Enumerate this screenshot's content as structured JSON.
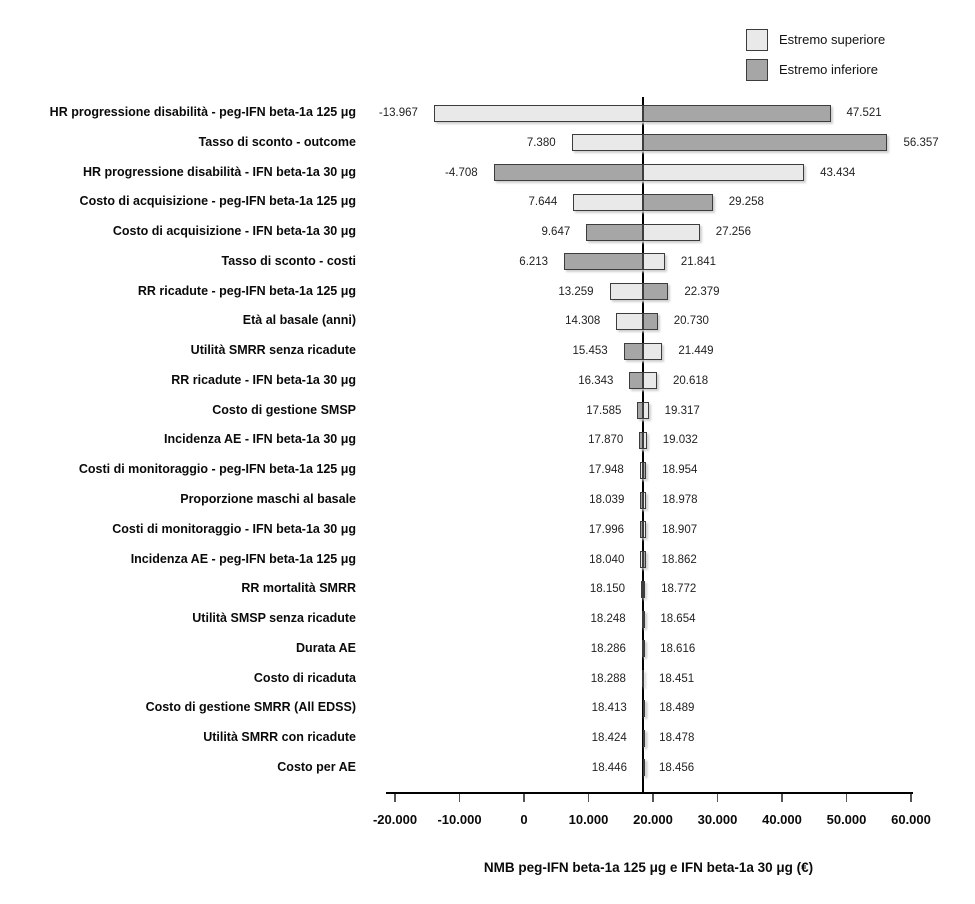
{
  "colors": {
    "estremo_superiore": "#e9e9e9",
    "estremo_inferiore": "#a6a6a6",
    "bar_border": "#3c3c3c",
    "axis": "#000000"
  },
  "legend": {
    "items": [
      {
        "label": "Estremo superiore",
        "key": "estremo_superiore"
      },
      {
        "label": "Estremo inferiore",
        "key": "estremo_inferiore"
      }
    ]
  },
  "chart_data": {
    "type": "bar",
    "subtype": "tornado",
    "xlabel": "NMB peg-IFN beta-1a 125 μg e IFN beta-1a 30 μg (€)",
    "baseline_value": 18451,
    "xlim": [
      -20000,
      60000
    ],
    "grid": false,
    "legend_position": "top-right",
    "x_ticks": [
      {
        "v": -20000,
        "label": "-20.000"
      },
      {
        "v": -10000,
        "label": "-10.000"
      },
      {
        "v": 0,
        "label": "0"
      },
      {
        "v": 10000,
        "label": "10.000"
      },
      {
        "v": 20000,
        "label": "20.000"
      },
      {
        "v": 30000,
        "label": "30.000"
      },
      {
        "v": 40000,
        "label": "40.000"
      },
      {
        "v": 50000,
        "label": "50.000"
      },
      {
        "v": 60000,
        "label": "60.000"
      }
    ],
    "rows": [
      {
        "label": "HR progressione disabilità - peg-IFN beta-1a 125 μg",
        "low": -13967,
        "high": 47521,
        "low_label": "-13.967",
        "high_label": "47.521",
        "left": "estremo_superiore"
      },
      {
        "label": "Tasso di sconto - outcome",
        "low": 7380,
        "high": 56357,
        "low_label": "7.380",
        "high_label": "56.357",
        "left": "estremo_superiore"
      },
      {
        "label": "HR progressione disabilità - IFN beta-1a 30 μg",
        "low": -4708,
        "high": 43434,
        "low_label": "-4.708",
        "high_label": "43.434",
        "left": "estremo_inferiore"
      },
      {
        "label": "Costo di acquisizione - peg-IFN beta-1a 125 μg",
        "low": 7644,
        "high": 29258,
        "low_label": "7.644",
        "high_label": "29.258",
        "left": "estremo_superiore"
      },
      {
        "label": "Costo di acquisizione - IFN beta-1a 30 μg",
        "low": 9647,
        "high": 27256,
        "low_label": "9.647",
        "high_label": "27.256",
        "left": "estremo_inferiore"
      },
      {
        "label": "Tasso di sconto - costi",
        "low": 6213,
        "high": 21841,
        "low_label": "6.213",
        "high_label": "21.841",
        "left": "estremo_inferiore"
      },
      {
        "label": "RR ricadute - peg-IFN beta-1a 125 μg",
        "low": 13259,
        "high": 22379,
        "low_label": "13.259",
        "high_label": "22.379",
        "left": "estremo_superiore"
      },
      {
        "label": "Età al basale (anni)",
        "low": 14308,
        "high": 20730,
        "low_label": "14.308",
        "high_label": "20.730",
        "left": "estremo_superiore"
      },
      {
        "label": "Utilità SMRR senza ricadute",
        "low": 15453,
        "high": 21449,
        "low_label": "15.453",
        "high_label": "21.449",
        "left": "estremo_inferiore"
      },
      {
        "label": "RR ricadute - IFN beta-1a 30 μg",
        "low": 16343,
        "high": 20618,
        "low_label": "16.343",
        "high_label": "20.618",
        "left": "estremo_inferiore"
      },
      {
        "label": "Costo di gestione SMSP",
        "low": 17585,
        "high": 19317,
        "low_label": "17.585",
        "high_label": "19.317",
        "left": "estremo_inferiore"
      },
      {
        "label": "Incidenza AE - IFN beta-1a 30 μg",
        "low": 17870,
        "high": 19032,
        "low_label": "17.870",
        "high_label": "19.032",
        "left": "estremo_inferiore"
      },
      {
        "label": "Costi di monitoraggio - peg-IFN beta-1a 125 μg",
        "low": 17948,
        "high": 18954,
        "low_label": "17.948",
        "high_label": "18.954",
        "left": "estremo_superiore"
      },
      {
        "label": "Proporzione maschi al basale",
        "low": 18039,
        "high": 18978,
        "low_label": "18.039",
        "high_label": "18.978",
        "left": "estremo_inferiore"
      },
      {
        "label": "Costi di monitoraggio - IFN beta-1a 30 μg",
        "low": 17996,
        "high": 18907,
        "low_label": "17.996",
        "high_label": "18.907",
        "left": "estremo_inferiore"
      },
      {
        "label": "Incidenza AE - peg-IFN beta-1a 125 μg",
        "low": 18040,
        "high": 18862,
        "low_label": "18.040",
        "high_label": "18.862",
        "left": "estremo_superiore"
      },
      {
        "label": "RR mortalità SMRR",
        "low": 18150,
        "high": 18772,
        "low_label": "18.150",
        "high_label": "18.772",
        "left": "estremo_inferiore"
      },
      {
        "label": "Utilità SMSP senza ricadute",
        "low": 18248,
        "high": 18654,
        "low_label": "18.248",
        "high_label": "18.654",
        "left": "estremo_inferiore"
      },
      {
        "label": "Durata AE",
        "low": 18286,
        "high": 18616,
        "low_label": "18.286",
        "high_label": "18.616",
        "left": "estremo_superiore"
      },
      {
        "label": "Costo di ricaduta",
        "low": 18288,
        "high": 18451,
        "low_label": "18.288",
        "high_label": "18.451",
        "left": "estremo_inferiore"
      },
      {
        "label": "Costo di gestione SMRR (All EDSS)",
        "low": 18413,
        "high": 18489,
        "low_label": "18.413",
        "high_label": "18.489",
        "left": "estremo_inferiore"
      },
      {
        "label": "Utilità SMRR con ricadute",
        "low": 18424,
        "high": 18478,
        "low_label": "18.424",
        "high_label": "18.478",
        "left": "estremo_inferiore"
      },
      {
        "label": "Costo per AE",
        "low": 18446,
        "high": 18456,
        "low_label": "18.446",
        "high_label": "18.456",
        "left": "estremo_superiore"
      }
    ]
  }
}
